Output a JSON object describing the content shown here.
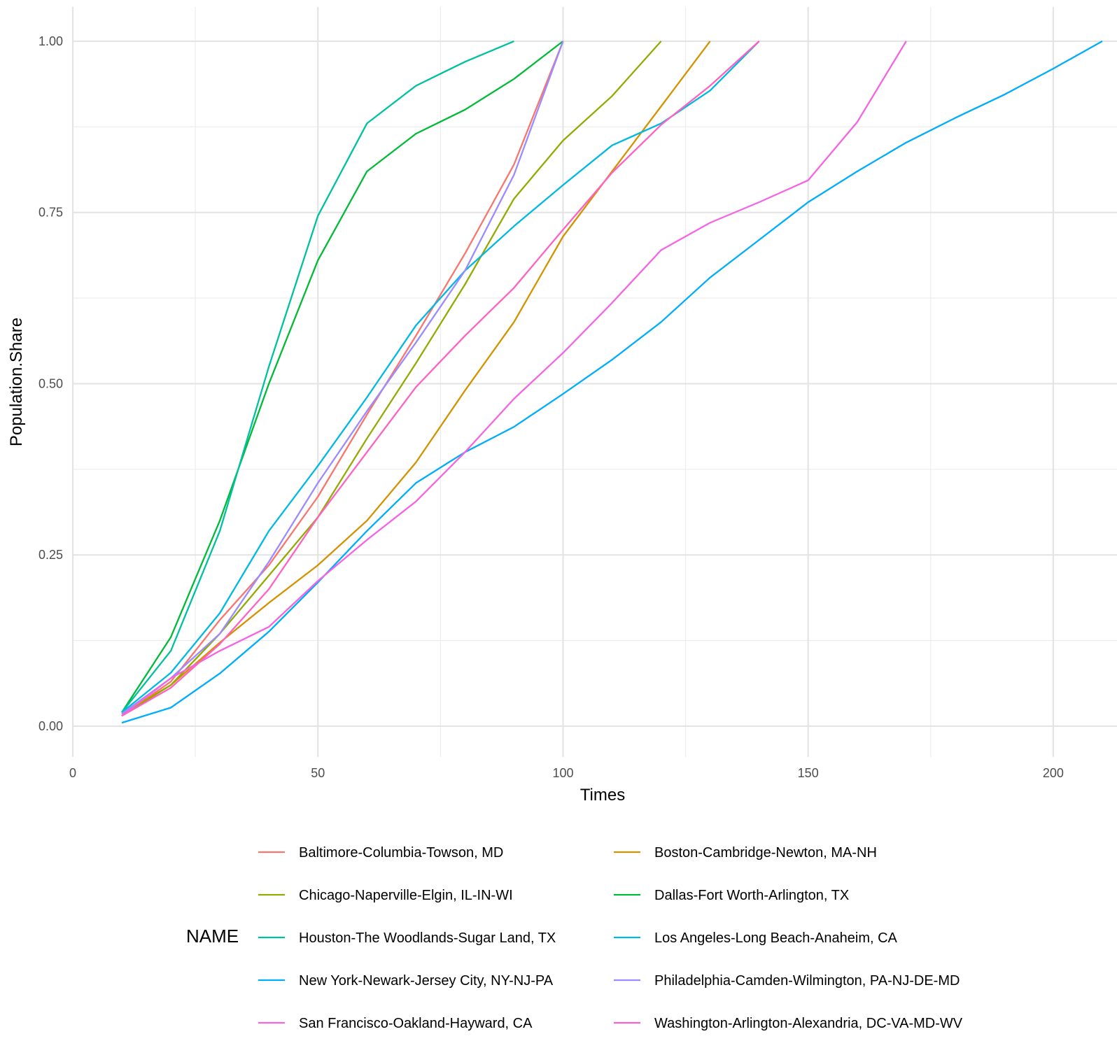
{
  "chart_data": {
    "type": "line",
    "title": "",
    "xlabel": "Times",
    "ylabel": "Population.Share",
    "xlim": [
      0,
      213
    ],
    "ylim": [
      -0.045,
      1.05
    ],
    "x_ticks": [
      0,
      50,
      100,
      150,
      200
    ],
    "x_tick_labels": [
      "0",
      "50",
      "100",
      "150",
      "200"
    ],
    "y_ticks": [
      0,
      0.25,
      0.5,
      0.75,
      1.0
    ],
    "y_tick_labels": [
      "0.00",
      "0.25",
      "0.50",
      "0.75",
      "1.00"
    ],
    "grid": true,
    "legend_title": "NAME",
    "legend_position": "bottom",
    "series": [
      {
        "name": "Baltimore-Columbia-Towson, MD",
        "color": "#F8766D",
        "x": [
          10,
          20,
          30,
          40,
          50,
          60,
          70,
          80,
          90,
          100
        ],
        "y": [
          0.015,
          0.065,
          0.155,
          0.235,
          0.335,
          0.455,
          0.57,
          0.69,
          0.82,
          1.0
        ]
      },
      {
        "name": "Boston-Cambridge-Newton, MA-NH",
        "color": "#D39200",
        "x": [
          10,
          20,
          30,
          40,
          50,
          60,
          70,
          80,
          90,
          100,
          110,
          120,
          130
        ],
        "y": [
          0.018,
          0.06,
          0.122,
          0.18,
          0.235,
          0.3,
          0.385,
          0.49,
          0.59,
          0.715,
          0.81,
          0.905,
          1.0
        ]
      },
      {
        "name": "Chicago-Naperville-Elgin, IL-IN-WI",
        "color": "#93AA00",
        "x": [
          10,
          20,
          30,
          40,
          50,
          60,
          70,
          80,
          90,
          100,
          110,
          120
        ],
        "y": [
          0.015,
          0.06,
          0.135,
          0.22,
          0.305,
          0.42,
          0.53,
          0.645,
          0.77,
          0.855,
          0.92,
          1.0
        ]
      },
      {
        "name": "Dallas-Fort Worth-Arlington, TX",
        "color": "#00BA38",
        "x": [
          10,
          20,
          30,
          40,
          50,
          60,
          70,
          80,
          90,
          100
        ],
        "y": [
          0.02,
          0.13,
          0.3,
          0.5,
          0.68,
          0.81,
          0.865,
          0.9,
          0.945,
          1.0
        ]
      },
      {
        "name": "Houston-The Woodlands-Sugar Land, TX",
        "color": "#00C19F",
        "x": [
          10,
          20,
          30,
          40,
          50,
          60,
          70,
          80,
          90
        ],
        "y": [
          0.02,
          0.11,
          0.285,
          0.525,
          0.745,
          0.88,
          0.935,
          0.97,
          1.0
        ]
      },
      {
        "name": "Los Angeles-Long Beach-Anaheim, CA",
        "color": "#00B9E3",
        "x": [
          10,
          20,
          30,
          40,
          50,
          60,
          70,
          80,
          90,
          100,
          110,
          120,
          130,
          140
        ],
        "y": [
          0.02,
          0.078,
          0.165,
          0.285,
          0.38,
          0.48,
          0.585,
          0.665,
          0.73,
          0.79,
          0.848,
          0.88,
          0.928,
          1.0
        ]
      },
      {
        "name": "New York-Newark-Jersey City, NY-NJ-PA",
        "color": "#00ADFA",
        "x": [
          10,
          20,
          30,
          40,
          50,
          60,
          70,
          80,
          90,
          100,
          110,
          120,
          130,
          140,
          150,
          160,
          170,
          180,
          190,
          200,
          210
        ],
        "y": [
          0.005,
          0.027,
          0.077,
          0.138,
          0.21,
          0.285,
          0.355,
          0.4,
          0.437,
          0.485,
          0.535,
          0.59,
          0.655,
          0.71,
          0.765,
          0.81,
          0.852,
          0.888,
          0.922,
          0.96,
          1.0
        ]
      },
      {
        "name": "Philadelphia-Camden-Wilmington, PA-NJ-DE-MD",
        "color": "#9B8BFF",
        "x": [
          10,
          20,
          30,
          40,
          50,
          60,
          70,
          80,
          90,
          100
        ],
        "y": [
          0.018,
          0.07,
          0.135,
          0.24,
          0.355,
          0.46,
          0.56,
          0.665,
          0.805,
          1.0
        ]
      },
      {
        "name": "San Francisco-Oakland-Hayward, CA",
        "color": "#F564E3",
        "x": [
          10,
          20,
          30,
          40,
          50,
          60,
          70,
          80,
          90,
          100,
          110,
          120,
          130,
          140,
          150,
          160,
          170
        ],
        "y": [
          0.015,
          0.07,
          0.11,
          0.145,
          0.212,
          0.272,
          0.328,
          0.4,
          0.478,
          0.545,
          0.618,
          0.695,
          0.735,
          0.765,
          0.797,
          0.882,
          1.0
        ]
      },
      {
        "name": "Washington-Arlington-Alexandria, DC-VA-MD-WV",
        "color": "#FF61C3",
        "x": [
          10,
          20,
          30,
          40,
          50,
          60,
          70,
          80,
          90,
          100,
          110,
          120,
          130,
          140
        ],
        "y": [
          0.015,
          0.056,
          0.12,
          0.2,
          0.305,
          0.4,
          0.495,
          0.57,
          0.64,
          0.725,
          0.808,
          0.878,
          0.935,
          1.0
        ]
      }
    ]
  }
}
